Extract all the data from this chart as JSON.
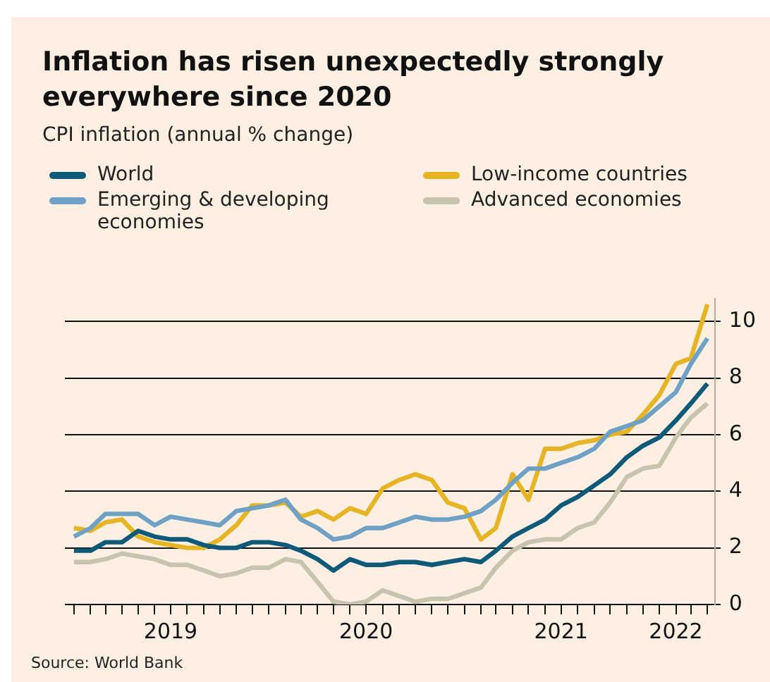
{
  "chart_data": {
    "type": "line",
    "title": "Inflation has risen unexpectedly strongly everywhere since 2020",
    "subtitle": "CPI inflation (annual % change)",
    "annotations": [
      "Source: World Bank"
    ],
    "x": [
      "2019-01",
      "2019-02",
      "2019-03",
      "2019-04",
      "2019-05",
      "2019-06",
      "2019-07",
      "2019-08",
      "2019-09",
      "2019-10",
      "2019-11",
      "2019-12",
      "2020-01",
      "2020-02",
      "2020-03",
      "2020-04",
      "2020-05",
      "2020-06",
      "2020-07",
      "2020-08",
      "2020-09",
      "2020-10",
      "2020-11",
      "2020-12",
      "2021-01",
      "2021-02",
      "2021-03",
      "2021-04",
      "2021-05",
      "2021-06",
      "2021-07",
      "2021-08",
      "2021-09",
      "2021-10",
      "2021-11",
      "2021-12",
      "2022-01",
      "2022-02",
      "2022-03",
      "2022-04"
    ],
    "series": [
      {
        "name": "World",
        "color": "#0f5a78",
        "values": [
          1.9,
          1.9,
          2.2,
          2.2,
          2.6,
          2.4,
          2.3,
          2.3,
          2.1,
          2.0,
          2.0,
          2.2,
          2.2,
          2.1,
          1.9,
          1.6,
          1.2,
          1.6,
          1.4,
          1.4,
          1.5,
          1.5,
          1.4,
          1.5,
          1.6,
          1.5,
          1.9,
          2.4,
          2.7,
          3.0,
          3.5,
          3.8,
          4.2,
          4.6,
          5.2,
          5.6,
          5.9,
          6.5,
          7.1,
          7.8
        ]
      },
      {
        "name": "Emerging & developing economies",
        "color": "#6fa1c4",
        "values": [
          2.4,
          2.7,
          3.2,
          3.2,
          3.2,
          2.8,
          3.1,
          3.0,
          2.9,
          2.8,
          3.3,
          3.4,
          3.5,
          3.7,
          3.0,
          2.7,
          2.3,
          2.4,
          2.7,
          2.7,
          2.9,
          3.1,
          3.0,
          3.0,
          3.1,
          3.3,
          3.7,
          4.3,
          4.8,
          4.8,
          5.0,
          5.2,
          5.5,
          6.1,
          6.3,
          6.5,
          7.0,
          7.5,
          8.5,
          9.4
        ]
      },
      {
        "name": "Low-income countries",
        "color": "#e6b424",
        "values": [
          2.7,
          2.6,
          2.9,
          3.0,
          2.4,
          2.2,
          2.1,
          2.0,
          2.0,
          2.3,
          2.8,
          3.5,
          3.5,
          3.6,
          3.1,
          3.3,
          3.0,
          3.4,
          3.2,
          4.1,
          4.4,
          4.6,
          4.4,
          3.6,
          3.4,
          2.3,
          2.7,
          4.6,
          3.7,
          5.5,
          5.5,
          5.7,
          5.8,
          6.0,
          6.1,
          6.7,
          7.4,
          8.5,
          8.7,
          10.6
        ]
      },
      {
        "name": "Advanced economies",
        "color": "#c8c2b0",
        "values": [
          1.5,
          1.5,
          1.6,
          1.8,
          1.7,
          1.6,
          1.4,
          1.4,
          1.2,
          1.0,
          1.1,
          1.3,
          1.3,
          1.6,
          1.5,
          0.8,
          0.1,
          0.0,
          0.1,
          0.5,
          0.3,
          0.1,
          0.2,
          0.2,
          0.4,
          0.6,
          1.3,
          1.9,
          2.2,
          2.3,
          2.3,
          2.7,
          2.9,
          3.6,
          4.5,
          4.8,
          4.9,
          5.9,
          6.6,
          7.1
        ]
      }
    ],
    "xlim": [
      "2018-12-15",
      "2022-04-15"
    ],
    "xticks": [
      {
        "value": "2019-01",
        "label": null
      },
      {
        "value": "2019-02",
        "label": null
      },
      {
        "value": "2019-03",
        "label": null
      },
      {
        "value": "2019-04",
        "label": null
      },
      {
        "value": "2019-05",
        "label": null
      },
      {
        "value": "2019-06",
        "label": null
      },
      {
        "value": "2019-07",
        "label": "2019"
      },
      {
        "value": "2019-08",
        "label": null
      },
      {
        "value": "2019-09",
        "label": null
      },
      {
        "value": "2019-10",
        "label": null
      },
      {
        "value": "2019-11",
        "label": null
      },
      {
        "value": "2019-12",
        "label": null
      },
      {
        "value": "2020-01",
        "label": null
      },
      {
        "value": "2020-02",
        "label": null
      },
      {
        "value": "2020-03",
        "label": null
      },
      {
        "value": "2020-04",
        "label": null
      },
      {
        "value": "2020-05",
        "label": null
      },
      {
        "value": "2020-06",
        "label": null
      },
      {
        "value": "2020-07",
        "label": "2020"
      },
      {
        "value": "2020-08",
        "label": null
      },
      {
        "value": "2020-09",
        "label": null
      },
      {
        "value": "2020-10",
        "label": null
      },
      {
        "value": "2020-11",
        "label": null
      },
      {
        "value": "2020-12",
        "label": null
      },
      {
        "value": "2021-01",
        "label": null
      },
      {
        "value": "2021-02",
        "label": null
      },
      {
        "value": "2021-03",
        "label": null
      },
      {
        "value": "2021-04",
        "label": null
      },
      {
        "value": "2021-05",
        "label": null
      },
      {
        "value": "2021-06",
        "label": null
      },
      {
        "value": "2021-07",
        "label": "2021"
      },
      {
        "value": "2021-08",
        "label": null
      },
      {
        "value": "2021-09",
        "label": null
      },
      {
        "value": "2021-10",
        "label": null
      },
      {
        "value": "2021-11",
        "label": null
      },
      {
        "value": "2021-12",
        "label": null
      },
      {
        "value": "2022-01",
        "label": null
      },
      {
        "value": "2022-02",
        "label": "2022"
      },
      {
        "value": "2022-03",
        "label": null
      },
      {
        "value": "2022-04",
        "label": null
      }
    ],
    "ylim": [
      0,
      10.8
    ],
    "yticks": [
      0,
      2,
      4,
      6,
      8,
      10
    ],
    "grid": "y",
    "legend": "top",
    "marker": "none",
    "line_style": "solid"
  }
}
